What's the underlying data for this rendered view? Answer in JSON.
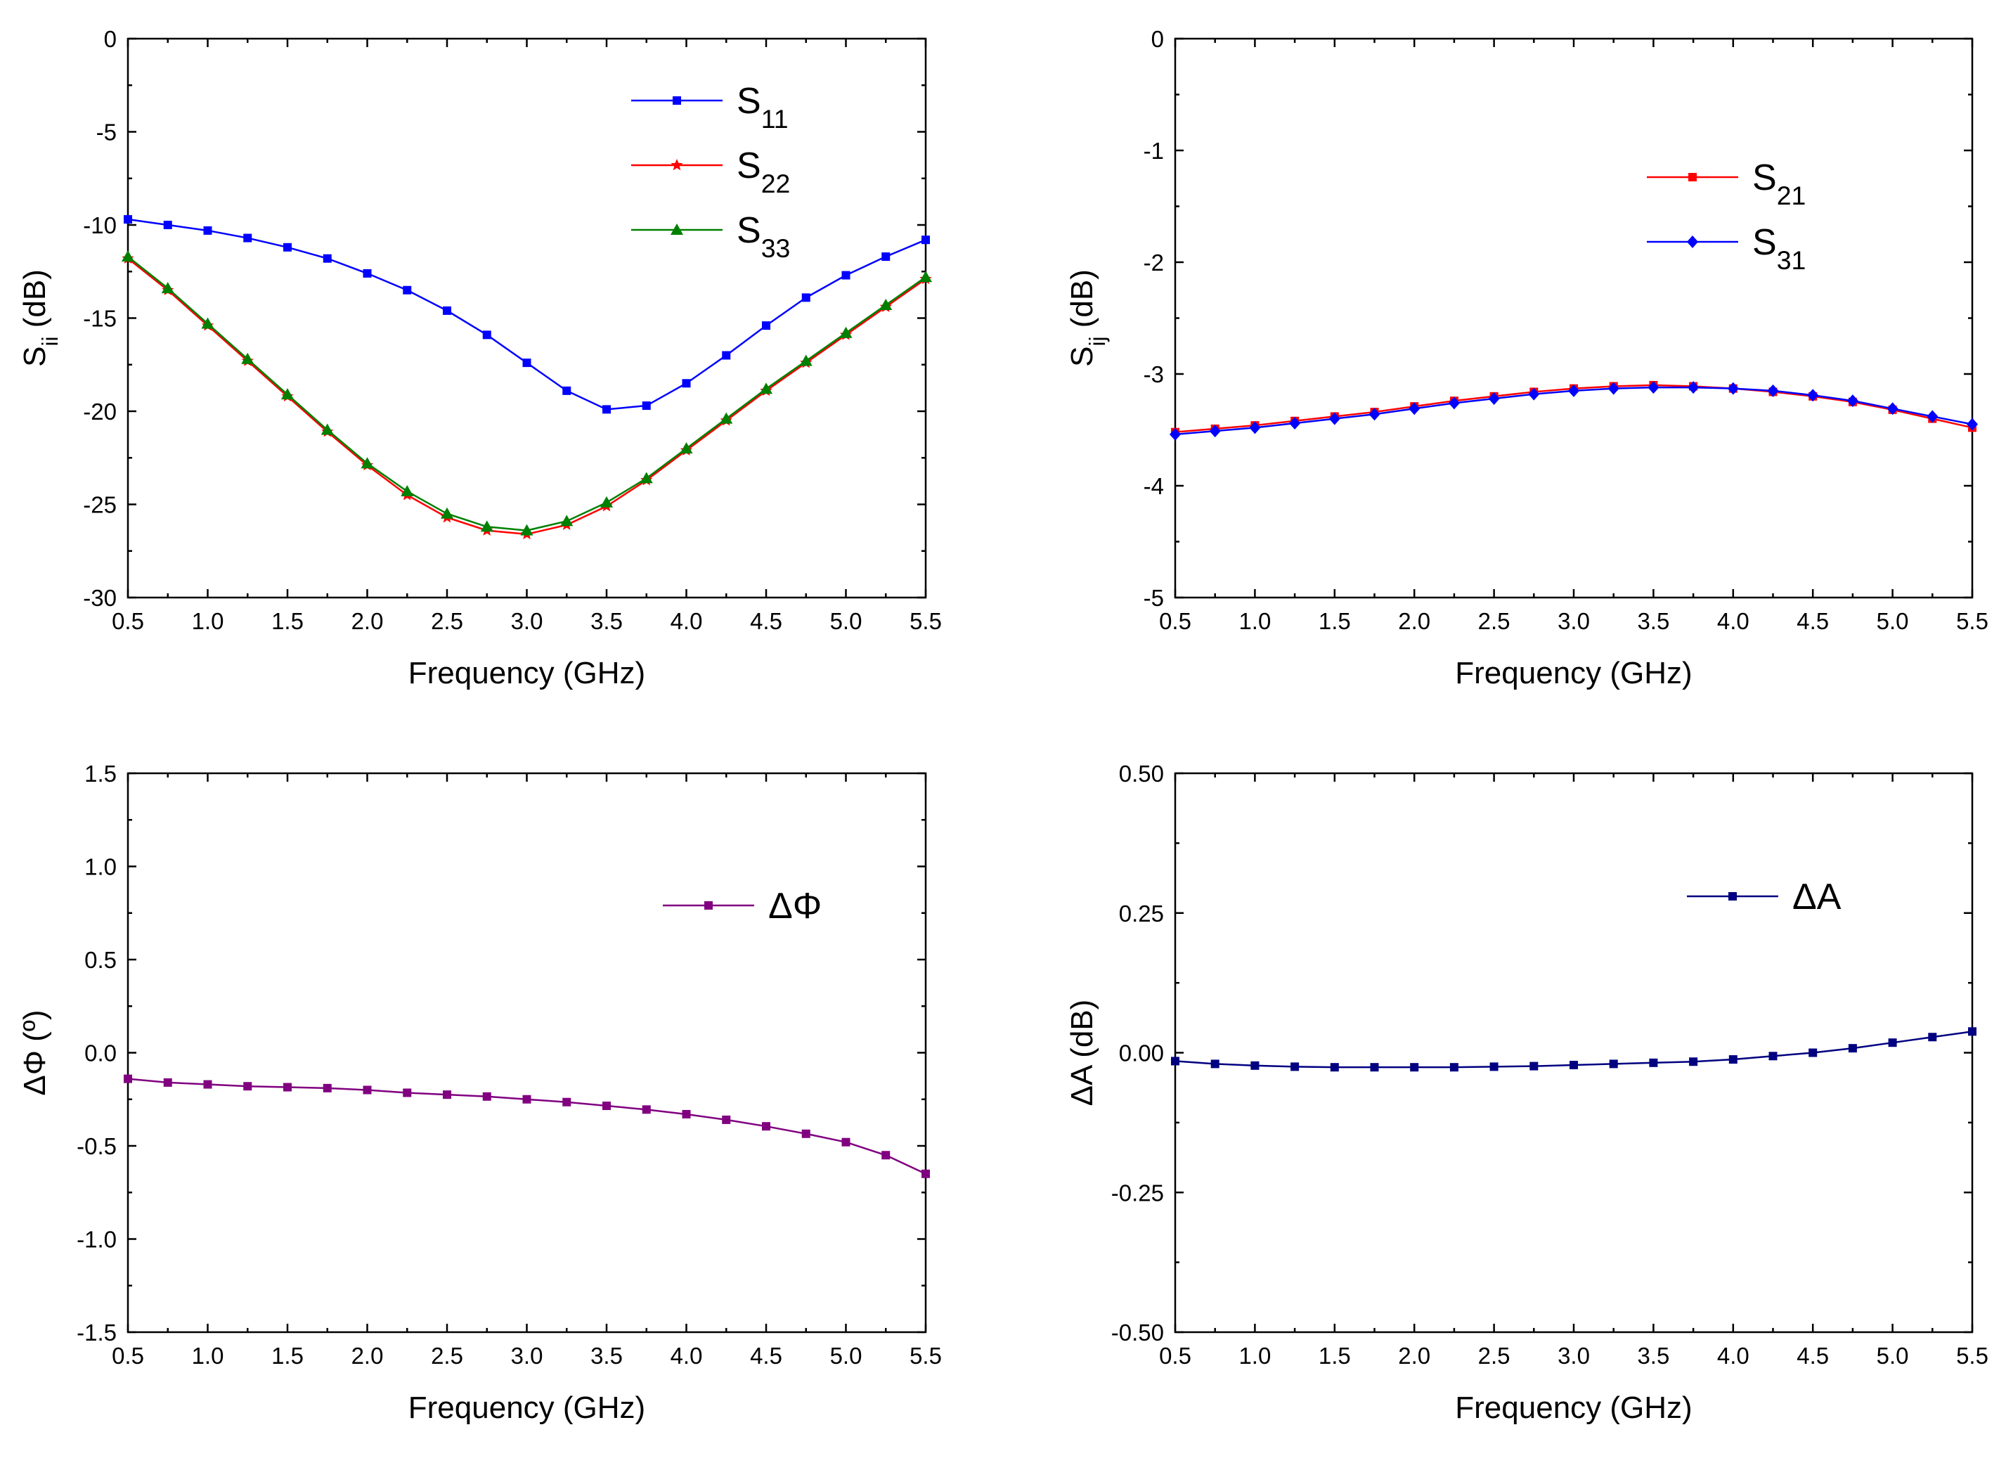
{
  "chart_data": [
    {
      "type": "line",
      "id": "return-loss",
      "xlabel": "Frequency (GHz)",
      "ylabel": {
        "base": "S",
        "sub": "ii",
        "suffix": " (dB)"
      },
      "xlim": [
        0.5,
        5.5
      ],
      "ylim": [
        -30,
        0
      ],
      "xticks": [
        "0.5",
        "1.0",
        "1.5",
        "2.0",
        "2.5",
        "3.0",
        "3.5",
        "4.0",
        "4.5",
        "5.0",
        "5.5"
      ],
      "yticks": [
        "0",
        "-5",
        "-10",
        "-15",
        "-20",
        "-25",
        "-30"
      ],
      "x": [
        0.5,
        0.75,
        1.0,
        1.25,
        1.5,
        1.75,
        2.0,
        2.25,
        2.5,
        2.75,
        3.0,
        3.25,
        3.5,
        3.75,
        4.0,
        4.25,
        4.5,
        4.75,
        5.0,
        5.25,
        5.5
      ],
      "series": [
        {
          "name": {
            "base": "S",
            "sub": "11"
          },
          "color": "#0000ff",
          "marker": "square",
          "values": [
            -9.7,
            -10.0,
            -10.3,
            -10.7,
            -11.2,
            -11.8,
            -12.6,
            -13.5,
            -14.6,
            -15.9,
            -17.4,
            -18.9,
            -19.9,
            -19.7,
            -18.5,
            -17.0,
            -15.4,
            -13.9,
            -12.7,
            -11.7,
            -10.8
          ]
        },
        {
          "name": {
            "base": "S",
            "sub": "22"
          },
          "color": "#ff0000",
          "marker": "star",
          "values": [
            -11.8,
            -13.5,
            -15.4,
            -17.3,
            -19.2,
            -21.1,
            -22.9,
            -24.5,
            -25.7,
            -26.4,
            -26.6,
            -26.1,
            -25.1,
            -23.7,
            -22.1,
            -20.5,
            -18.9,
            -17.4,
            -15.9,
            -14.4,
            -12.9
          ]
        },
        {
          "name": {
            "base": "S",
            "sub": "33"
          },
          "color": "#008000",
          "marker": "triangle",
          "values": [
            -11.7,
            -13.4,
            -15.3,
            -17.2,
            -19.1,
            -21.0,
            -22.8,
            -24.3,
            -25.5,
            -26.2,
            -26.4,
            -25.9,
            -24.9,
            -23.6,
            -22.0,
            -20.4,
            -18.8,
            -17.3,
            -15.8,
            -14.3,
            -12.8
          ]
        }
      ]
    },
    {
      "type": "line",
      "id": "transmission",
      "xlabel": "Frequency (GHz)",
      "ylabel": {
        "base": "S",
        "sub": "ij",
        "suffix": " (dB)"
      },
      "xlim": [
        0.5,
        5.5
      ],
      "ylim": [
        -5,
        0
      ],
      "xticks": [
        "0.5",
        "1.0",
        "1.5",
        "2.0",
        "2.5",
        "3.0",
        "3.5",
        "4.0",
        "4.5",
        "5.0",
        "5.5"
      ],
      "yticks": [
        "0",
        "-1",
        "-2",
        "-3",
        "-4",
        "-5"
      ],
      "x": [
        0.5,
        0.75,
        1.0,
        1.25,
        1.5,
        1.75,
        2.0,
        2.25,
        2.5,
        2.75,
        3.0,
        3.25,
        3.5,
        3.75,
        4.0,
        4.25,
        4.5,
        4.75,
        5.0,
        5.25,
        5.5
      ],
      "series": [
        {
          "name": {
            "base": "S",
            "sub": "21"
          },
          "color": "#ff0000",
          "marker": "square",
          "values": [
            -3.52,
            -3.49,
            -3.46,
            -3.42,
            -3.38,
            -3.34,
            -3.29,
            -3.24,
            -3.2,
            -3.16,
            -3.13,
            -3.11,
            -3.1,
            -3.11,
            -3.13,
            -3.16,
            -3.2,
            -3.25,
            -3.32,
            -3.4,
            -3.48
          ]
        },
        {
          "name": {
            "base": "S",
            "sub": "31"
          },
          "color": "#0000ff",
          "marker": "diamond",
          "values": [
            -3.54,
            -3.51,
            -3.48,
            -3.44,
            -3.4,
            -3.36,
            -3.31,
            -3.26,
            -3.22,
            -3.18,
            -3.15,
            -3.13,
            -3.12,
            -3.12,
            -3.13,
            -3.15,
            -3.19,
            -3.24,
            -3.31,
            -3.38,
            -3.45
          ]
        }
      ]
    },
    {
      "type": "line",
      "id": "phase-difference",
      "xlabel": "Frequency (GHz)",
      "ylabel": {
        "base": "ΔΦ (º)",
        "sub": "",
        "suffix": ""
      },
      "xlim": [
        0.5,
        5.5
      ],
      "ylim": [
        -1.5,
        1.5
      ],
      "xticks": [
        "0.5",
        "1.0",
        "1.5",
        "2.0",
        "2.5",
        "3.0",
        "3.5",
        "4.0",
        "4.5",
        "5.0",
        "5.5"
      ],
      "yticks": [
        "1.5",
        "1.0",
        "0.5",
        "0.0",
        "-0.5",
        "-1.0",
        "-1.5"
      ],
      "x": [
        0.5,
        0.75,
        1.0,
        1.25,
        1.5,
        1.75,
        2.0,
        2.25,
        2.5,
        2.75,
        3.0,
        3.25,
        3.5,
        3.75,
        4.0,
        4.25,
        4.5,
        4.75,
        5.0,
        5.25,
        5.5
      ],
      "series": [
        {
          "name": {
            "base": "ΔΦ",
            "sub": ""
          },
          "color": "#800080",
          "marker": "square",
          "values": [
            -0.14,
            -0.16,
            -0.17,
            -0.18,
            -0.185,
            -0.19,
            -0.2,
            -0.215,
            -0.225,
            -0.235,
            -0.25,
            -0.265,
            -0.285,
            -0.305,
            -0.33,
            -0.36,
            -0.395,
            -0.435,
            -0.48,
            -0.55,
            -0.65
          ]
        }
      ]
    },
    {
      "type": "line",
      "id": "amplitude-difference",
      "xlabel": "Frequency (GHz)",
      "ylabel": {
        "base": "ΔA (dB)",
        "sub": "",
        "suffix": ""
      },
      "xlim": [
        0.5,
        5.5
      ],
      "ylim": [
        -0.5,
        0.5
      ],
      "xticks": [
        "0.5",
        "1.0",
        "1.5",
        "2.0",
        "2.5",
        "3.0",
        "3.5",
        "4.0",
        "4.5",
        "5.0",
        "5.5"
      ],
      "yticks": [
        "0.50",
        "0.25",
        "0.00",
        "-0.25",
        "-0.50"
      ],
      "x": [
        0.5,
        0.75,
        1.0,
        1.25,
        1.5,
        1.75,
        2.0,
        2.25,
        2.5,
        2.75,
        3.0,
        3.25,
        3.5,
        3.75,
        4.0,
        4.25,
        4.5,
        4.75,
        5.0,
        5.25,
        5.5
      ],
      "series": [
        {
          "name": {
            "base": "ΔA",
            "sub": ""
          },
          "color": "#000080",
          "marker": "square",
          "values": [
            -0.015,
            -0.02,
            -0.023,
            -0.025,
            -0.026,
            -0.026,
            -0.026,
            -0.026,
            -0.025,
            -0.024,
            -0.022,
            -0.02,
            -0.018,
            -0.016,
            -0.012,
            -0.006,
            0.0,
            0.008,
            0.018,
            0.028,
            0.038
          ]
        }
      ]
    }
  ]
}
